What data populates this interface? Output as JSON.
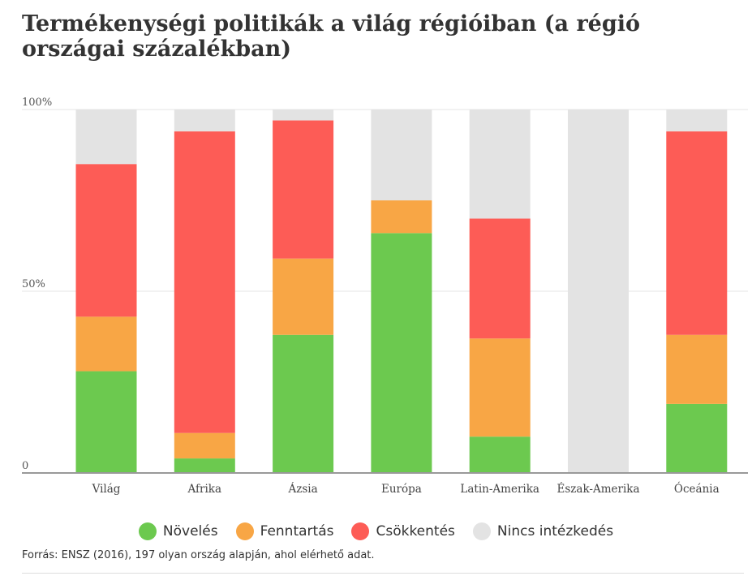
{
  "title": "Termékenységi politikák a világ régióiban (a régió országai százalékban)",
  "source": "Forrás: ENSZ (2016), 197 olyan ország alapján, ahol elérhető adat.",
  "colors": {
    "novelés": "#6cc94f",
    "fenntartás": "#f8a645",
    "csokkentes": "#fd5c56",
    "nincs": "#e3e3e3"
  },
  "legend": [
    {
      "label": "Növelés",
      "color": "#6cc94f"
    },
    {
      "label": "Fenntartás",
      "color": "#f8a645"
    },
    {
      "label": "Csökkentés",
      "color": "#fd5c56"
    },
    {
      "label": "Nincs intézkedés",
      "color": "#e3e3e3"
    }
  ],
  "chart_data": {
    "type": "bar",
    "stacked": true,
    "title": "Termékenységi politikák a világ régióiban (a régió országai százalékban)",
    "categories": [
      "Világ",
      "Afrika",
      "Ázsia",
      "Európa",
      "Latin-Amerika",
      "Észak-Amerika",
      "Óceánia"
    ],
    "ylim": [
      0,
      100
    ],
    "yticks": [
      "0",
      "50%",
      "100%"
    ],
    "grid": true,
    "legend_position": "bottom",
    "series": [
      {
        "name": "Növelés",
        "color": "#6cc94f",
        "values": [
          28,
          4,
          38,
          66,
          10,
          0,
          19
        ]
      },
      {
        "name": "Fenntartás",
        "color": "#f8a645",
        "values": [
          15,
          7,
          21,
          9,
          27,
          0,
          19
        ]
      },
      {
        "name": "Csökkentés",
        "color": "#fd5c56",
        "values": [
          42,
          83,
          38,
          0,
          33,
          0,
          56
        ]
      },
      {
        "name": "Nincs intézkedés",
        "color": "#e3e3e3",
        "values": [
          15,
          6,
          3,
          25,
          30,
          100,
          6
        ]
      }
    ]
  }
}
